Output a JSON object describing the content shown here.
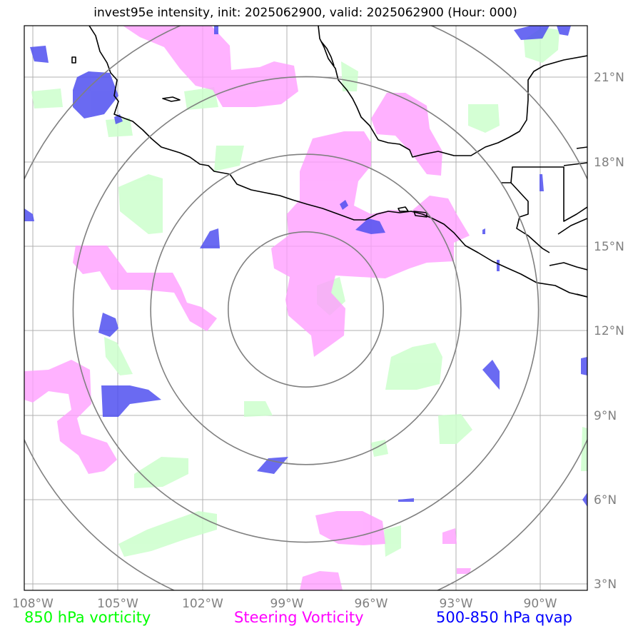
{
  "title": "invest95e intensity, init: 2025062900, valid: 2025062900 (Hour: 000)",
  "legend": {
    "item1": {
      "label": "850 hPa vorticity",
      "color": "#00ff00"
    },
    "item2": {
      "label": "Steering Vorticity",
      "color": "#ff00ff"
    },
    "item3": {
      "label": "500-850 hPa qvap",
      "color": "#0000ff"
    }
  },
  "map": {
    "lon_range": [
      -108.3,
      -88.7
    ],
    "lat_range": [
      2.9,
      23.0
    ],
    "center": {
      "lon": -98.5,
      "lat": 12.9
    },
    "range_rings_deg": [
      2.7,
      5.4,
      8.1,
      10.8
    ],
    "grid": true
  },
  "axes": {
    "lon_ticks": [
      {
        "value": -108,
        "label": "108°W"
      },
      {
        "value": -105,
        "label": "105°W"
      },
      {
        "value": -102,
        "label": "102°W"
      },
      {
        "value": -99,
        "label": "99°W"
      },
      {
        "value": -96,
        "label": "96°W"
      },
      {
        "value": -93,
        "label": "93°W"
      },
      {
        "value": -90,
        "label": "90°W"
      }
    ],
    "lat_ticks": [
      {
        "value": 3,
        "label": "3°N"
      },
      {
        "value": 6,
        "label": "6°N"
      },
      {
        "value": 9,
        "label": "9°N"
      },
      {
        "value": 12,
        "label": "12°N"
      },
      {
        "value": 15,
        "label": "15°N"
      },
      {
        "value": 18,
        "label": "18°N"
      },
      {
        "value": 21,
        "label": "21°N"
      }
    ]
  },
  "fields": {
    "steering_color": "#ff9cff",
    "vort850_color": "#ccffcc",
    "qvap_color": "#5050f0"
  }
}
